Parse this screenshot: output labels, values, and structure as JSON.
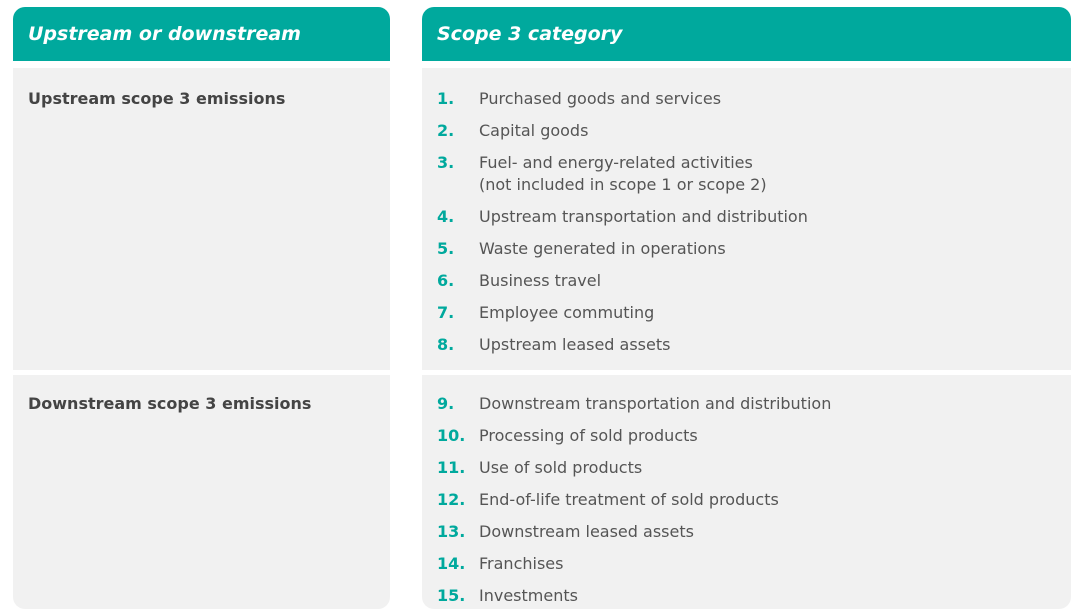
{
  "headers": {
    "left": "Upstream or downstream",
    "right": "Scope 3 category"
  },
  "rows": [
    {
      "label": "Upstream scope 3 emissions",
      "items": [
        {
          "num": "1.",
          "text": "Purchased goods and services"
        },
        {
          "num": "2.",
          "text": "Capital goods"
        },
        {
          "num": "3.",
          "text": "Fuel- and energy-related activities\n(not included in scope 1 or scope 2)"
        },
        {
          "num": "4.",
          "text": "Upstream transportation and distribution"
        },
        {
          "num": "5.",
          "text": "Waste generated in operations"
        },
        {
          "num": "6.",
          "text": "Business travel"
        },
        {
          "num": "7.",
          "text": "Employee commuting"
        },
        {
          "num": "8.",
          "text": "Upstream leased assets"
        }
      ]
    },
    {
      "label": "Downstream scope 3 emissions",
      "items": [
        {
          "num": "9.",
          "text": "Downstream transportation and distribution"
        },
        {
          "num": "10.",
          "text": "Processing of sold products"
        },
        {
          "num": "11.",
          "text": "Use of sold products"
        },
        {
          "num": "12.",
          "text": "End-of-life treatment of sold products"
        },
        {
          "num": "13.",
          "text": "Downstream leased assets"
        },
        {
          "num": "14.",
          "text": "Franchises"
        },
        {
          "num": "15.",
          "text": "Investments"
        }
      ]
    }
  ],
  "colors": {
    "accent": "#00a99d",
    "cell_bg": "#f1f1f1"
  }
}
